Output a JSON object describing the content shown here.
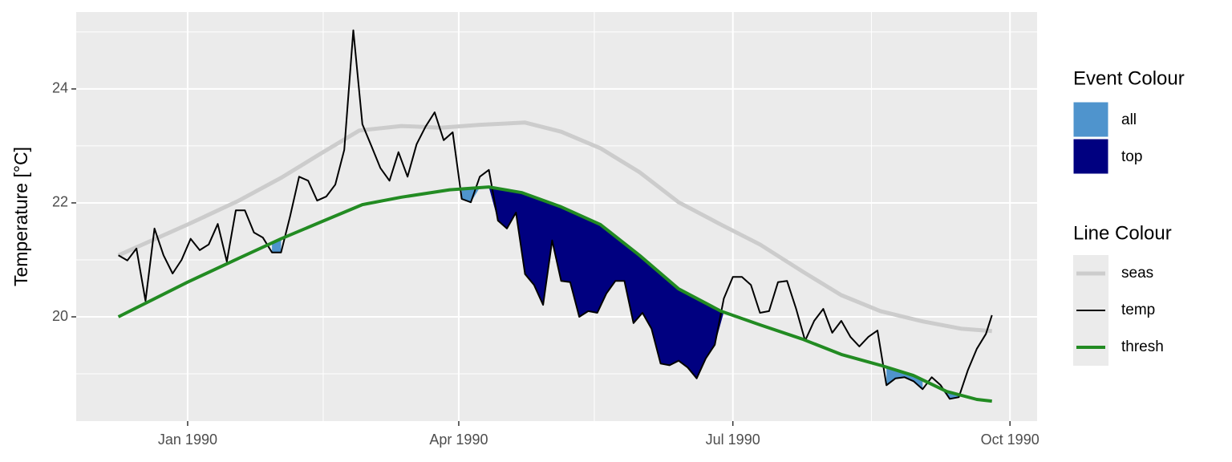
{
  "chart_data": {
    "type": "line",
    "y_label": "Temperature [°C]",
    "xlim": [
      "1989-11-25",
      "1990-10-10"
    ],
    "xticks": [
      {
        "value": "1990-01-01",
        "label": "Jan 1990"
      },
      {
        "value": "1990-04-01",
        "label": "Apr 1990"
      },
      {
        "value": "1990-07-01",
        "label": "Jul 1990"
      },
      {
        "value": "1990-10-01",
        "label": "Oct 1990"
      }
    ],
    "xminor": [
      "1990-02-15",
      "1990-05-16",
      "1990-08-16"
    ],
    "ylim": [
      18.17,
      25.35
    ],
    "yticks": [
      20,
      22,
      24
    ],
    "yminor": [
      19,
      21,
      23,
      25
    ],
    "grid": true,
    "line_legend_title": "Line Colour",
    "fill_legend": {
      "title": "Event Colour",
      "items": [
        {
          "name": "all",
          "color": "#4f94cd"
        },
        {
          "name": "top",
          "color": "#000080"
        }
      ]
    },
    "events": [
      {
        "start": "1990-01-29",
        "end": "1990-02-01",
        "color": "#4f94cd"
      },
      {
        "start": "1990-04-02",
        "end": "1990-04-11",
        "color": "#4f94cd"
      },
      {
        "start": "1990-04-11",
        "end": "1990-06-28",
        "color": "#000080"
      },
      {
        "start": "1990-08-21",
        "end": "1990-09-02",
        "color": "#4f94cd"
      },
      {
        "start": "1990-09-08",
        "end": "1990-09-14",
        "color": "#4f94cd"
      }
    ],
    "series": [
      {
        "name": "seas",
        "color": "#cccccc",
        "width": 5,
        "x": [
          "1989-12-09",
          "1990-01-01",
          "1990-01-18",
          "1990-02-01",
          "1990-02-14",
          "1990-02-27",
          "1990-03-13",
          "1990-03-26",
          "1990-04-08",
          "1990-04-23",
          "1990-05-05",
          "1990-05-18",
          "1990-05-31",
          "1990-06-13",
          "1990-06-27",
          "1990-07-10",
          "1990-07-24",
          "1990-08-06",
          "1990-08-19",
          "1990-09-02",
          "1990-09-15",
          "1990-09-25"
        ],
        "values": [
          21.08,
          21.62,
          22.04,
          22.44,
          22.86,
          23.27,
          23.35,
          23.32,
          23.37,
          23.41,
          23.25,
          22.96,
          22.54,
          22.01,
          21.62,
          21.27,
          20.8,
          20.38,
          20.1,
          19.92,
          19.79,
          19.75
        ]
      },
      {
        "name": "temp",
        "color": "#000000",
        "width": 2,
        "x": [
          "1989-12-09",
          "1989-12-12",
          "1989-12-15",
          "1989-12-18",
          "1989-12-21",
          "1989-12-24",
          "1989-12-27",
          "1989-12-30",
          "1990-01-02",
          "1990-01-05",
          "1990-01-08",
          "1990-01-11",
          "1990-01-14",
          "1990-01-17",
          "1990-01-20",
          "1990-01-23",
          "1990-01-26",
          "1990-01-29",
          "1990-02-01",
          "1990-02-04",
          "1990-02-07",
          "1990-02-10",
          "1990-02-13",
          "1990-02-16",
          "1990-02-19",
          "1990-02-22",
          "1990-02-25",
          "1990-02-28",
          "1990-03-03",
          "1990-03-06",
          "1990-03-09",
          "1990-03-12",
          "1990-03-15",
          "1990-03-18",
          "1990-03-21",
          "1990-03-24",
          "1990-03-27",
          "1990-03-30",
          "1990-04-02",
          "1990-04-05",
          "1990-04-08",
          "1990-04-11",
          "1990-04-14",
          "1990-04-17",
          "1990-04-20",
          "1990-04-23",
          "1990-04-26",
          "1990-04-29",
          "1990-05-02",
          "1990-05-05",
          "1990-05-08",
          "1990-05-11",
          "1990-05-14",
          "1990-05-17",
          "1990-05-20",
          "1990-05-23",
          "1990-05-26",
          "1990-05-29",
          "1990-06-01",
          "1990-06-04",
          "1990-06-07",
          "1990-06-10",
          "1990-06-13",
          "1990-06-16",
          "1990-06-19",
          "1990-06-22",
          "1990-06-25",
          "1990-06-28",
          "1990-07-01",
          "1990-07-04",
          "1990-07-07",
          "1990-07-10",
          "1990-07-13",
          "1990-07-16",
          "1990-07-19",
          "1990-07-22",
          "1990-07-25",
          "1990-07-28",
          "1990-07-31",
          "1990-08-03",
          "1990-08-06",
          "1990-08-09",
          "1990-08-12",
          "1990-08-15",
          "1990-08-18",
          "1990-08-21",
          "1990-08-24",
          "1990-08-27",
          "1990-08-30",
          "1990-09-02",
          "1990-09-05",
          "1990-09-08",
          "1990-09-11",
          "1990-09-14",
          "1990-09-17",
          "1990-09-20",
          "1990-09-23",
          "1990-09-25"
        ],
        "values": [
          21.08,
          20.99,
          21.2,
          20.28,
          21.55,
          21.08,
          20.76,
          21.0,
          21.37,
          21.17,
          21.27,
          21.63,
          20.97,
          21.87,
          21.87,
          21.48,
          21.39,
          21.13,
          21.13,
          21.76,
          22.46,
          22.39,
          22.04,
          22.11,
          22.32,
          22.93,
          25.03,
          23.38,
          23.0,
          22.61,
          22.39,
          22.89,
          22.46,
          23.03,
          23.34,
          23.59,
          23.1,
          23.24,
          22.07,
          22.01,
          22.46,
          22.58,
          21.69,
          21.55,
          21.83,
          20.75,
          20.56,
          20.21,
          21.34,
          20.63,
          20.61,
          20.0,
          20.1,
          20.07,
          20.41,
          20.63,
          20.63,
          19.89,
          20.07,
          19.79,
          19.18,
          19.15,
          19.23,
          19.11,
          18.92,
          19.27,
          19.51,
          20.32,
          20.7,
          20.7,
          20.56,
          20.07,
          20.1,
          20.61,
          20.63,
          20.14,
          19.58,
          19.93,
          20.14,
          19.72,
          19.93,
          19.65,
          19.48,
          19.65,
          19.76,
          18.8,
          18.92,
          18.94,
          18.87,
          18.73,
          18.94,
          18.8,
          18.56,
          18.59,
          19.06,
          19.44,
          19.7,
          20.03
        ]
      },
      {
        "name": "thresh",
        "color": "#228b22",
        "width": 4,
        "x": [
          "1989-12-09",
          "1990-01-01",
          "1990-01-18",
          "1990-02-01",
          "1990-02-14",
          "1990-02-28",
          "1990-03-13",
          "1990-03-29",
          "1990-04-11",
          "1990-04-22",
          "1990-05-05",
          "1990-05-18",
          "1990-05-31",
          "1990-06-13",
          "1990-06-27",
          "1990-07-10",
          "1990-07-24",
          "1990-08-06",
          "1990-08-19",
          "1990-08-30",
          "1990-09-10",
          "1990-09-20",
          "1990-09-25"
        ],
        "values": [
          20.0,
          20.61,
          21.03,
          21.37,
          21.66,
          21.97,
          22.1,
          22.23,
          22.28,
          22.18,
          21.93,
          21.62,
          21.08,
          20.49,
          20.1,
          19.86,
          19.61,
          19.34,
          19.15,
          18.97,
          18.69,
          18.55,
          18.52
        ]
      }
    ]
  }
}
